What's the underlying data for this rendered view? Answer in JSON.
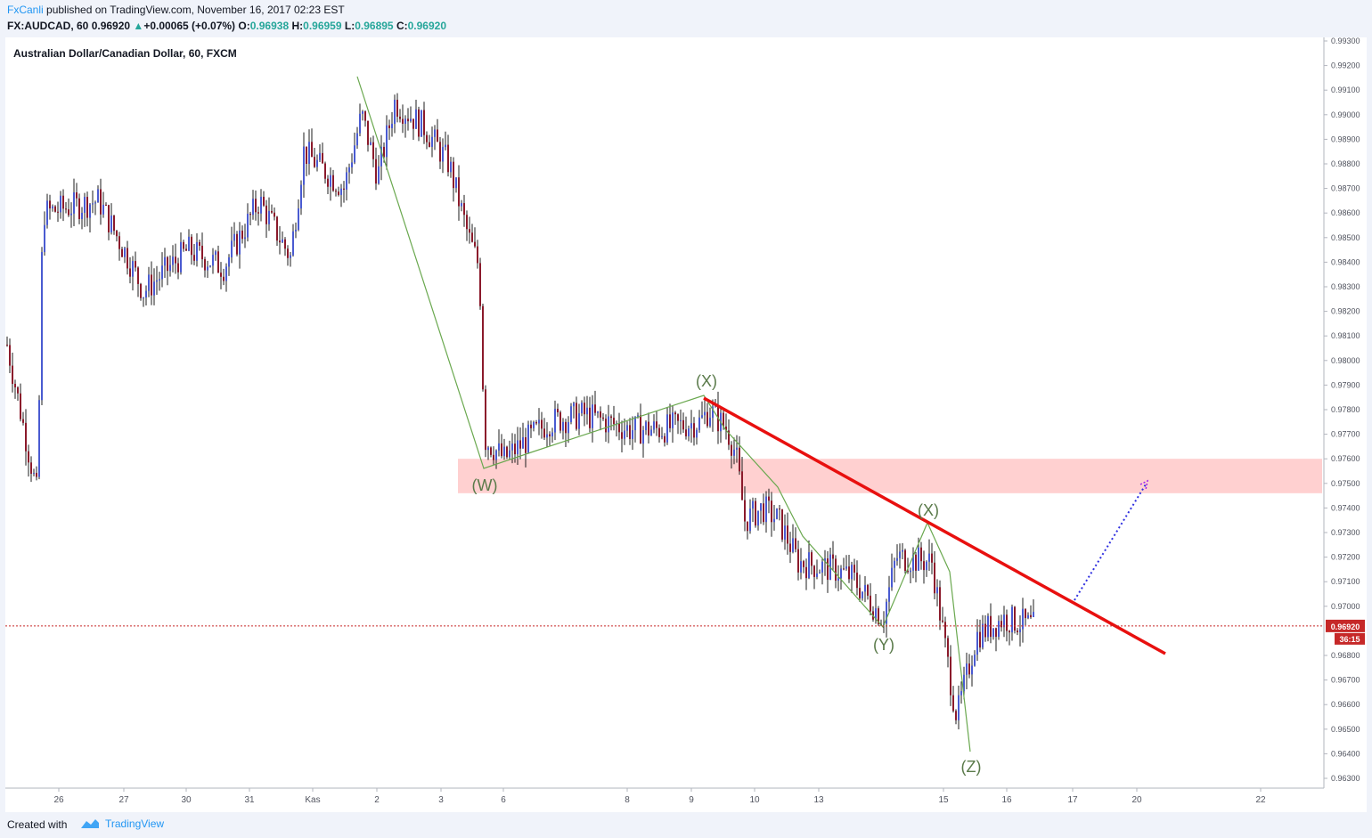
{
  "header": {
    "author": "FxCanli",
    "published_text": " published on TradingView.com, November 16, 2017 02:23 EST",
    "symbol": "FX:AUDCAD, 60",
    "last": "0.96920",
    "change": "+0.00065 (+0.07%)",
    "o_label": "O:",
    "o_value": "0.96938",
    "h_label": "H:",
    "h_value": "0.96959",
    "l_label": "L:",
    "l_value": "0.96895",
    "c_label": "C:",
    "c_value": "0.96920"
  },
  "chart_title": "Australian Dollar/Canadian Dollar, 60, FXCM",
  "footer": {
    "created_with": "Created with",
    "brand": "TradingView"
  },
  "colors": {
    "up_candle": "#4a5bd1",
    "down_candle": "#8b1a2b",
    "wave_line": "#6aa84f",
    "trendline": "#e8100f",
    "zone": "#ffc8c8",
    "projection": "#2f2fe0",
    "price_line": "#c62828",
    "wave_label": "#5a7a4a"
  },
  "chart_data": {
    "type": "candlestick",
    "symbol": "AUDCAD",
    "timeframe": "60",
    "ylim": [
      0.9625,
      0.9935
    ],
    "y_ticks": [
      "0.99300",
      "0.99200",
      "0.99100",
      "0.99000",
      "0.98900",
      "0.98800",
      "0.98700",
      "0.98600",
      "0.98500",
      "0.98400",
      "0.98300",
      "0.98200",
      "0.98100",
      "0.98000",
      "0.97900",
      "0.97800",
      "0.97700",
      "0.97600",
      "0.97500",
      "0.97400",
      "0.97300",
      "0.97200",
      "0.97100",
      "0.97000",
      "0.96800",
      "0.96700",
      "0.96600",
      "0.96500",
      "0.96400",
      "0.96300"
    ],
    "x_ticks": [
      "26",
      "27",
      "30",
      "31",
      "Kas",
      "2",
      "3",
      "6",
      "8",
      "9",
      "10",
      "13",
      "15",
      "16",
      "17",
      "20",
      "22"
    ],
    "last_price": "0.96920",
    "countdown": "36:15",
    "close_path": [
      {
        "t": "start",
        "v": 0.981
      },
      {
        "t": "26a",
        "v": 0.9745
      },
      {
        "t": "26",
        "v": 0.986
      },
      {
        "t": "27",
        "v": 0.9865
      },
      {
        "t": "27b",
        "v": 0.984
      },
      {
        "t": "27c",
        "v": 0.9828
      },
      {
        "t": "30",
        "v": 0.9845
      },
      {
        "t": "30b",
        "v": 0.9838
      },
      {
        "t": "31",
        "v": 0.9865
      },
      {
        "t": "31b",
        "v": 0.9842
      },
      {
        "t": "Kas",
        "v": 0.9885
      },
      {
        "t": "Kas b",
        "v": 0.987
      },
      {
        "t": "1",
        "v": 0.99
      },
      {
        "t": "1b",
        "v": 0.9875
      },
      {
        "t": "2",
        "v": 0.9905
      },
      {
        "t": "2b",
        "v": 0.9895
      },
      {
        "t": "3",
        "v": 0.988
      },
      {
        "t": "3b",
        "v": 0.985
      },
      {
        "t": "3c",
        "v": 0.9838
      },
      {
        "t": "6",
        "v": 0.9768
      },
      {
        "t": "6b",
        "v": 0.976
      },
      {
        "t": "6c",
        "v": 0.9775
      },
      {
        "t": "7",
        "v": 0.9778
      },
      {
        "t": "7b",
        "v": 0.9772
      },
      {
        "t": "8",
        "v": 0.9772
      },
      {
        "t": "8b",
        "v": 0.9775
      },
      {
        "t": "9",
        "v": 0.978
      },
      {
        "t": "9b",
        "v": 0.9772
      },
      {
        "t": "9c",
        "v": 0.9762
      },
      {
        "t": "10",
        "v": 0.9735
      },
      {
        "t": "10b",
        "v": 0.974
      },
      {
        "t": "10c",
        "v": 0.9735
      },
      {
        "t": "13",
        "v": 0.9718
      },
      {
        "t": "13b",
        "v": 0.9715
      },
      {
        "t": "14",
        "v": 0.9712
      },
      {
        "t": "14b",
        "v": 0.9695
      },
      {
        "t": "14c",
        "v": 0.972
      },
      {
        "t": "15",
        "v": 0.9718
      },
      {
        "t": "15b",
        "v": 0.9665
      },
      {
        "t": "15c",
        "v": 0.9655
      },
      {
        "t": "16",
        "v": 0.9688
      },
      {
        "t": "16b",
        "v": 0.9695
      },
      {
        "t": "16c",
        "v": 0.9692
      }
    ],
    "wave_labels": [
      "(W)",
      "(X)",
      "(Y)",
      "(X)",
      "(Z)"
    ],
    "annotations": [
      {
        "kind": "zone",
        "y_range": [
          0.9746,
          0.976
        ]
      },
      {
        "kind": "trendline",
        "from": {
          "v": 0.9784
        },
        "to": {
          "v": 0.968
        }
      },
      {
        "kind": "projection",
        "from": {
          "v": 0.97
        },
        "to": {
          "v": 0.975
        }
      }
    ],
    "grid": false,
    "legend": "none"
  }
}
